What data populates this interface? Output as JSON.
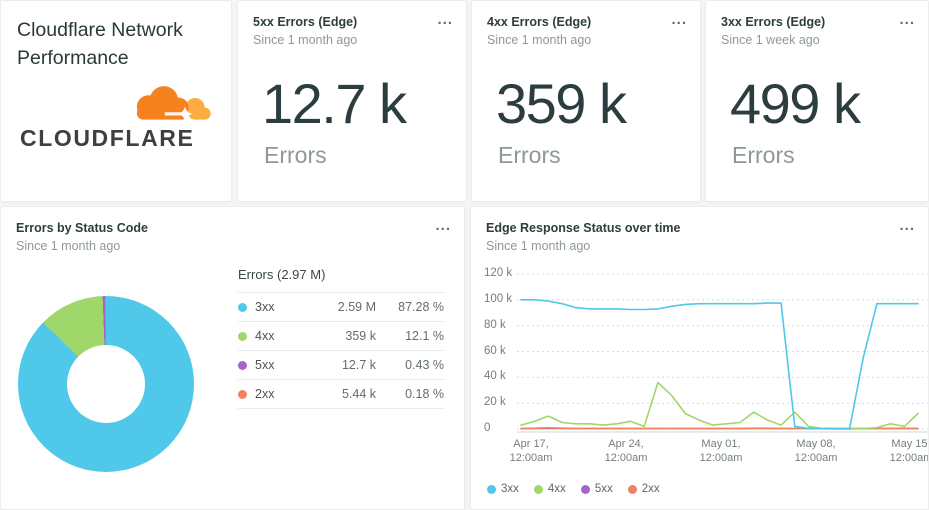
{
  "icons": {
    "menu": "..."
  },
  "cards": {
    "brand": {
      "title": "Cloudflare Network Performance",
      "logo_text": "CLOUDFLARE",
      "logo_colors": {
        "cloud_orange": "#f6821f",
        "cloud_light": "#fbad41",
        "word": "#3e4040"
      }
    },
    "stats": [
      {
        "title": "5xx Errors (Edge)",
        "subtitle": "Since 1 month ago",
        "value": "12.7 k",
        "unit_label": "Errors"
      },
      {
        "title": "4xx Errors (Edge)",
        "subtitle": "Since 1 month ago",
        "value": "359 k",
        "unit_label": "Errors"
      },
      {
        "title": "3xx Errors (Edge)",
        "subtitle": "Since 1 week ago",
        "value": "499 k",
        "unit_label": "Errors"
      }
    ],
    "donut": {
      "title": "Errors by Status Code",
      "subtitle": "Since 1 month ago"
    },
    "timeseries": {
      "title": "Edge Response Status over time",
      "subtitle": "Since 1 month ago"
    }
  },
  "chart_data": [
    {
      "type": "pie",
      "style": "donut",
      "title": "Errors by Status Code",
      "legend_title": "Errors (2.97 M)",
      "slices": [
        {
          "label": "3xx",
          "value_label": "2.59 M",
          "pct_label": "87.28 %",
          "pct": 87.28,
          "color": "#4fc8e9"
        },
        {
          "label": "4xx",
          "value_label": "359 k",
          "pct_label": "12.1 %",
          "pct": 12.1,
          "color": "#a0d76a"
        },
        {
          "label": "5xx",
          "value_label": "12.7 k",
          "pct_label": "0.43 %",
          "pct": 0.43,
          "color": "#a763c9"
        },
        {
          "label": "2xx",
          "value_label": "5.44 k",
          "pct_label": "0.18 %",
          "pct": 0.18,
          "color": "#f0825f"
        }
      ]
    },
    {
      "type": "line",
      "title": "Edge Response Status over time",
      "unit": "thousands of errors",
      "ylim": [
        0,
        120
      ],
      "grid": "dashed-horizontal",
      "legend_position": "bottom-left",
      "y_ticks": [
        120,
        100,
        80,
        60,
        40,
        20,
        0
      ],
      "y_tick_labels": [
        "120 k",
        "100 k",
        "80 k",
        "60 k",
        "40 k",
        "20 k",
        "0"
      ],
      "tick_dates": [
        "Apr 17,",
        "Apr 24,",
        "May 01,",
        "May 08,",
        "May 15,"
      ],
      "tick_times": [
        "12:00am",
        "12:00am",
        "12:00am",
        "12:00am",
        "12:00am"
      ],
      "x_dates": [
        "Apr 16",
        "Apr 17",
        "Apr 18",
        "Apr 19",
        "Apr 20",
        "Apr 21",
        "Apr 22",
        "Apr 23",
        "Apr 24",
        "Apr 25",
        "Apr 26",
        "Apr 27",
        "Apr 28",
        "Apr 29",
        "Apr 30",
        "May 01",
        "May 02",
        "May 03",
        "May 04",
        "May 05",
        "May 06",
        "May 07",
        "May 08",
        "May 09",
        "May 10",
        "May 11",
        "May 12",
        "May 13",
        "May 14",
        "May 15"
      ],
      "series": [
        {
          "name": "3xx",
          "color": "#4fc8e9",
          "values": [
            100,
            100,
            99,
            97,
            94,
            93,
            93,
            93,
            92.5,
            92.5,
            93,
            95,
            96.5,
            97,
            97,
            97,
            97,
            97,
            97.5,
            97.5,
            2,
            0.5,
            0.3,
            0.3,
            0.3,
            55,
            97,
            97,
            97,
            97
          ]
        },
        {
          "name": "4xx",
          "color": "#a0d76a",
          "values": [
            3,
            6,
            10,
            5,
            4,
            4,
            3,
            4,
            6,
            2,
            36,
            26,
            12,
            7,
            3,
            4,
            5,
            13,
            7,
            3,
            13,
            2,
            0.5,
            0.2,
            0.2,
            0.3,
            1,
            4,
            2,
            12
          ]
        },
        {
          "name": "5xx",
          "color": "#a763c9",
          "values": [
            0.4,
            0.4,
            0.4,
            0.4,
            0.4,
            0.4,
            0.4,
            0.4,
            0.4,
            0.4,
            0.4,
            0.4,
            0.4,
            0.4,
            0.4,
            0.4,
            0.4,
            0.4,
            0.4,
            0.4,
            0.4,
            0.4,
            0.4,
            0.4,
            0.4,
            0.4,
            0.4,
            0.4,
            0.4,
            0.4
          ]
        },
        {
          "name": "2xx",
          "color": "#f0825f",
          "values": [
            0.3,
            0.6,
            0.9,
            0.6,
            0.4,
            0.4,
            0.4,
            0.4,
            0.4,
            0.3,
            0.4,
            0.4,
            0.4,
            0.3,
            0.3,
            0.4,
            0.4,
            0.6,
            0.6,
            0.4,
            0.3,
            0.2,
            0.2,
            0.1,
            0.1,
            0.2,
            0.3,
            0.4,
            0.6,
            0.4
          ]
        }
      ]
    }
  ]
}
